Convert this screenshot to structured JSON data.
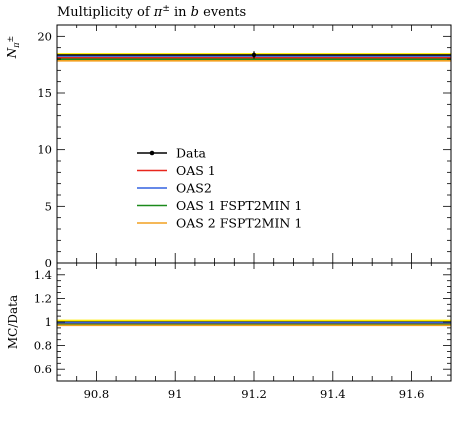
{
  "chart_data": [
    {
      "type": "line",
      "title": "Multiplicity of π± in b events",
      "title_parts": [
        "Multiplicity of ",
        "π",
        "±",
        " in ",
        "b",
        " events"
      ],
      "ylabel_parts": [
        "N",
        "π",
        "±"
      ],
      "ylabel": "Nπ±",
      "xlim": [
        90.7,
        91.7
      ],
      "ylim": [
        0,
        21
      ],
      "yticks": [
        {
          "v": 0,
          "label": "0"
        },
        {
          "v": 5,
          "label": "5"
        },
        {
          "v": 10,
          "label": "10"
        },
        {
          "v": 15,
          "label": "15"
        },
        {
          "v": 20,
          "label": "20"
        }
      ],
      "legend_position": "center-left",
      "data_point": {
        "name": "Data",
        "x": 91.2,
        "y": 18.36,
        "yerr": 0.32
      },
      "series": [
        {
          "name": "OAS 1",
          "y": 18.12,
          "color": "#e8261c"
        },
        {
          "name": "OAS2",
          "y": 18.26,
          "color": "#3462e0"
        },
        {
          "name": "OAS 1 FSPT2MIN 1",
          "y": 17.98,
          "color": "#1b8a1b"
        },
        {
          "name": "OAS 2 FSPT2MIN 1",
          "y": 17.84,
          "color": "#f2a020"
        }
      ],
      "colors": {
        "data": "#000000",
        "data_band": "#ffee00"
      }
    },
    {
      "type": "line",
      "ylabel": "MC/Data",
      "xlim": [
        90.7,
        91.7
      ],
      "ylim": [
        0.5,
        1.5
      ],
      "xticks": [
        {
          "v": 90.8,
          "label": "90.8"
        },
        {
          "v": 91.0,
          "label": "91"
        },
        {
          "v": 91.2,
          "label": "91.2"
        },
        {
          "v": 91.4,
          "label": "91.4"
        },
        {
          "v": 91.6,
          "label": "91.6"
        }
      ],
      "yticks": [
        {
          "v": 0.6,
          "label": "0.6"
        },
        {
          "v": 0.8,
          "label": "0.8"
        },
        {
          "v": 1.0,
          "label": "1"
        },
        {
          "v": 1.2,
          "label": "1.2"
        },
        {
          "v": 1.4,
          "label": "1.4"
        }
      ],
      "band": [
        0.98,
        1.02
      ],
      "ratios": [
        {
          "name": "Data",
          "y": 1.0,
          "color": "#000000"
        },
        {
          "name": "OAS 1",
          "y": 0.987,
          "color": "#e8261c"
        },
        {
          "name": "OAS2",
          "y": 0.995,
          "color": "#3462e0"
        },
        {
          "name": "OAS 1 FSPT2MIN 1",
          "y": 0.979,
          "color": "#1b8a1b"
        },
        {
          "name": "OAS 2 FSPT2MIN 1",
          "y": 0.972,
          "color": "#f2a020"
        }
      ]
    }
  ]
}
